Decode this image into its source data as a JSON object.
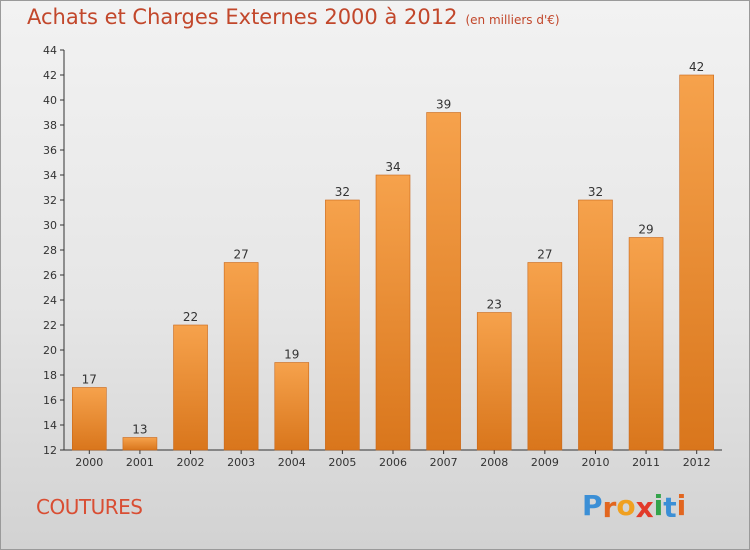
{
  "header": {
    "title": "Achats et Charges Externes 2000 à 2012",
    "unit_note": "(en milliers d'€)"
  },
  "footer": {
    "commune": "COUTURES",
    "logo": {
      "text": "Proxiti",
      "letter_colors": [
        "#3b8fd6",
        "#e2661f",
        "#f0a020",
        "#e23a2a",
        "#33a34a",
        "#3b8fd6",
        "#e2661f"
      ]
    }
  },
  "chart_data": {
    "type": "bar",
    "title": "Achats et Charges Externes 2000 à 2012",
    "subtitle": "(en milliers d'€)",
    "xlabel": "",
    "ylabel": "",
    "categories": [
      "2000",
      "2001",
      "2002",
      "2003",
      "2004",
      "2005",
      "2006",
      "2007",
      "2008",
      "2009",
      "2010",
      "2011",
      "2012"
    ],
    "values": [
      17,
      13,
      22,
      27,
      19,
      32,
      34,
      39,
      23,
      27,
      32,
      29,
      42
    ],
    "ylim": [
      12,
      44
    ],
    "yticks": [
      "12",
      "14",
      "16",
      "18",
      "20",
      "22",
      "24",
      "26",
      "28",
      "30",
      "32",
      "34",
      "36",
      "38",
      "40",
      "42",
      "44"
    ],
    "grid": false,
    "legend": "none",
    "bar_color": "#f0922e",
    "data_labels": true
  }
}
